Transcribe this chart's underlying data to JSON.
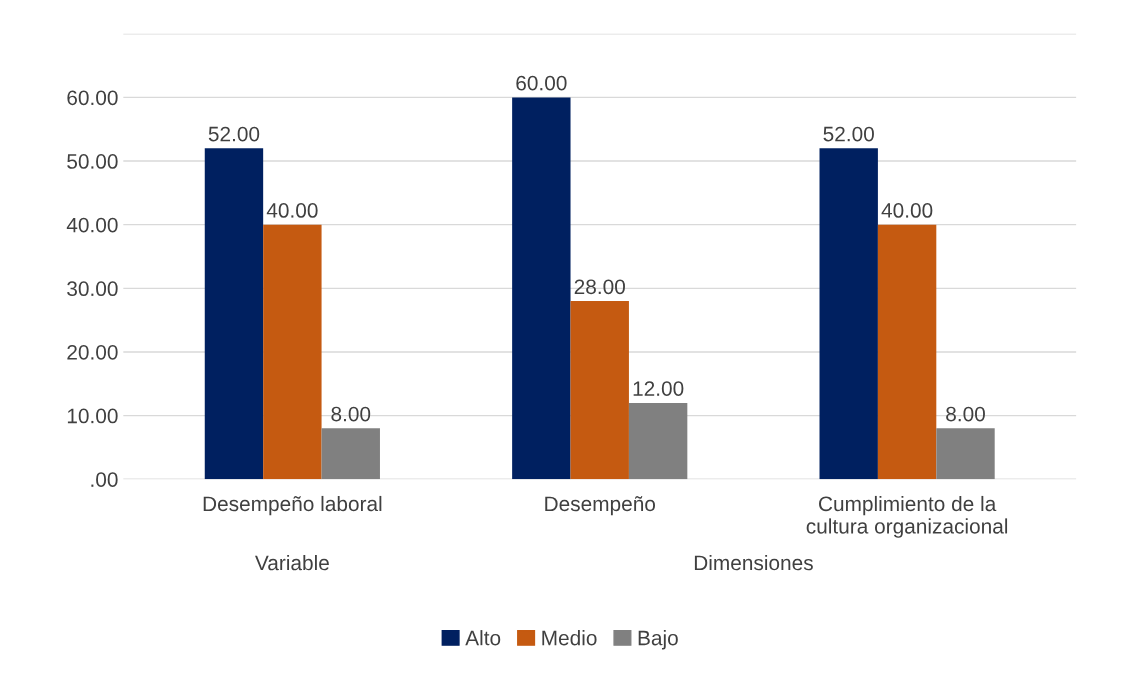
{
  "chart_data": {
    "type": "bar",
    "categories": [
      "Desempeño laboral",
      "Desempeño",
      "Cumplimiento de la\ncultura organizacional"
    ],
    "series": [
      {
        "name": "Alto",
        "color": "#002060",
        "values": [
          52,
          60,
          52
        ],
        "value_labels": [
          "52.00",
          "60.00",
          "52.00"
        ]
      },
      {
        "name": "Medio",
        "color": "#c55a11",
        "values": [
          40,
          28,
          40
        ],
        "value_labels": [
          "40.00",
          "28.00",
          "40.00"
        ]
      },
      {
        "name": "Bajo",
        "color": "#808080",
        "values": [
          8,
          12,
          8
        ],
        "value_labels": [
          "8.00",
          "12.00",
          "8.00"
        ]
      }
    ],
    "ylim": [
      0,
      70
    ],
    "yticks": [
      {
        "value": 0,
        "label": ".00"
      },
      {
        "value": 10,
        "label": "10.00"
      },
      {
        "value": 20,
        "label": "20.00"
      },
      {
        "value": 30,
        "label": "30.00"
      },
      {
        "value": 40,
        "label": "40.00"
      },
      {
        "value": 50,
        "label": "50.00"
      },
      {
        "value": 60,
        "label": "60.00"
      },
      {
        "value": 70,
        "label": null
      }
    ],
    "grid": "y",
    "legend": "bottom",
    "annotations": [
      "Variable",
      "Dimensiones"
    ]
  }
}
